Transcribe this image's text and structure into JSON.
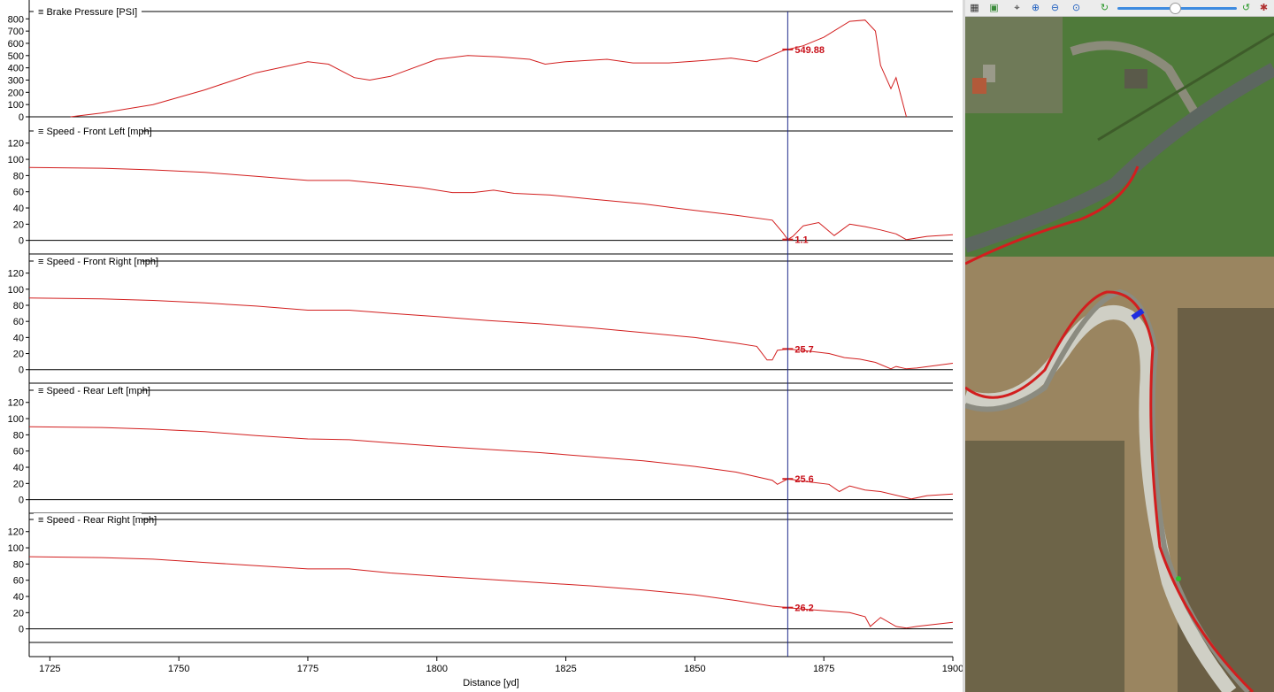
{
  "plots": {
    "x_axis": {
      "label": "Distance [yd]",
      "range": [
        1721,
        1900
      ],
      "ticks": [
        1725,
        1750,
        1775,
        1800,
        1825,
        1850,
        1875,
        1900
      ]
    },
    "cursor": {
      "x": 1868
    },
    "panels": [
      {
        "title": "Brake Pressure [PSI]",
        "yrange": [
          0,
          860
        ],
        "yticks": [
          0,
          100,
          200,
          300,
          400,
          500,
          600,
          700,
          800
        ],
        "cursor_value": "549.88",
        "cursor_y": 550
      },
      {
        "title": "Speed - Front Left [mph]",
        "yrange": [
          -8,
          135
        ],
        "yticks": [
          0,
          20,
          40,
          60,
          80,
          100,
          120
        ],
        "cursor_value": "1.1",
        "cursor_y": 1.1
      },
      {
        "title": "Speed - Front Right [mph]",
        "yrange": [
          -8,
          135
        ],
        "yticks": [
          0,
          20,
          40,
          60,
          80,
          100,
          120
        ],
        "cursor_value": "25.7",
        "cursor_y": 25.7
      },
      {
        "title": "Speed - Rear Left [mph]",
        "yrange": [
          -8,
          135
        ],
        "yticks": [
          0,
          20,
          40,
          60,
          80,
          100,
          120
        ],
        "cursor_value": "25.6",
        "cursor_y": 25.6
      },
      {
        "title": "Speed - Rear Right [mph]",
        "yrange": [
          -8,
          135
        ],
        "yticks": [
          0,
          20,
          40,
          60,
          80,
          100,
          120
        ],
        "cursor_value": "26.2",
        "cursor_y": 26.2
      }
    ]
  },
  "chart_data": [
    {
      "type": "line",
      "title": "Brake Pressure [PSI]",
      "xlabel": "Distance [yd]",
      "ylabel": "Brake Pressure [PSI]",
      "xlim": [
        1721,
        1900
      ],
      "ylim": [
        0,
        860
      ],
      "grid": false,
      "series": [
        {
          "name": "Brake Pressure [PSI]",
          "x": [
            1729,
            1735,
            1745,
            1755,
            1765,
            1775,
            1779,
            1784,
            1787,
            1791,
            1800,
            1806,
            1812,
            1818,
            1821,
            1825,
            1833,
            1838,
            1845,
            1852,
            1857,
            1862,
            1867,
            1871,
            1875,
            1880,
            1883,
            1885,
            1886,
            1888,
            1889,
            1891
          ],
          "y": [
            0,
            30,
            100,
            220,
            360,
            450,
            430,
            320,
            300,
            330,
            470,
            500,
            490,
            470,
            430,
            450,
            470,
            440,
            440,
            460,
            480,
            450,
            540,
            580,
            650,
            780,
            790,
            700,
            420,
            230,
            320,
            0
          ]
        }
      ],
      "cursor_x": 1868
    },
    {
      "type": "line",
      "title": "Speed - Front Left [mph]",
      "xlabel": "Distance [yd]",
      "ylabel": "Speed - Front Left [mph]",
      "xlim": [
        1721,
        1900
      ],
      "ylim": [
        -8,
        135
      ],
      "grid": false,
      "series": [
        {
          "name": "Speed - Front Left [mph]",
          "x": [
            1721,
            1735,
            1745,
            1755,
            1765,
            1775,
            1783,
            1791,
            1797,
            1803,
            1807,
            1811,
            1815,
            1822,
            1830,
            1840,
            1850,
            1858,
            1865,
            1867,
            1868,
            1869,
            1871,
            1874,
            1877,
            1880,
            1883,
            1886,
            1889,
            1891,
            1895,
            1900
          ],
          "y": [
            90,
            89,
            87,
            84,
            79,
            74,
            74,
            69,
            65,
            59,
            59,
            62,
            58,
            56,
            51,
            45,
            37,
            31,
            25,
            10,
            1.1,
            5,
            18,
            22,
            6,
            20,
            17,
            13,
            8,
            1,
            5,
            7
          ]
        }
      ],
      "cursor_x": 1868
    },
    {
      "type": "line",
      "title": "Speed - Front Right [mph]",
      "xlabel": "Distance [yd]",
      "ylabel": "Speed - Front Right [mph]",
      "xlim": [
        1721,
        1900
      ],
      "ylim": [
        -8,
        135
      ],
      "grid": false,
      "series": [
        {
          "name": "Speed - Front Right [mph]",
          "x": [
            1721,
            1735,
            1745,
            1755,
            1765,
            1775,
            1783,
            1791,
            1800,
            1810,
            1820,
            1830,
            1840,
            1850,
            1858,
            1862,
            1864,
            1865,
            1866,
            1868,
            1872,
            1876,
            1879,
            1882,
            1885,
            1888,
            1889,
            1891,
            1893,
            1900
          ],
          "y": [
            89,
            88,
            86,
            83,
            79,
            74,
            74,
            70,
            66,
            61,
            57,
            52,
            46,
            40,
            33,
            29,
            12,
            12,
            24,
            25.7,
            23,
            20,
            15,
            13,
            9,
            1,
            4,
            1,
            2,
            8
          ]
        }
      ],
      "cursor_x": 1868
    },
    {
      "type": "line",
      "title": "Speed - Rear Left [mph]",
      "xlabel": "Distance [yd]",
      "ylabel": "Speed - Rear Left [mph]",
      "xlim": [
        1721,
        1900
      ],
      "ylim": [
        -8,
        135
      ],
      "grid": false,
      "series": [
        {
          "name": "Speed - Rear Left [mph]",
          "x": [
            1721,
            1735,
            1745,
            1755,
            1765,
            1775,
            1783,
            1791,
            1800,
            1810,
            1820,
            1830,
            1840,
            1850,
            1858,
            1865,
            1866,
            1868,
            1872,
            1876,
            1878,
            1880,
            1883,
            1886,
            1890,
            1892,
            1895,
            1900
          ],
          "y": [
            90,
            89,
            87,
            84,
            79,
            75,
            74,
            70,
            66,
            62,
            58,
            53,
            48,
            41,
            34,
            24,
            19,
            25.6,
            22,
            19,
            10,
            17,
            12,
            10,
            4,
            1,
            5,
            7
          ]
        }
      ],
      "cursor_x": 1868
    },
    {
      "type": "line",
      "title": "Speed - Rear Right [mph]",
      "xlabel": "Distance [yd]",
      "ylabel": "Speed - Rear Right [mph]",
      "xlim": [
        1721,
        1900
      ],
      "ylim": [
        -8,
        135
      ],
      "grid": false,
      "series": [
        {
          "name": "Speed - Rear Right [mph]",
          "x": [
            1721,
            1735,
            1745,
            1755,
            1765,
            1775,
            1783,
            1791,
            1800,
            1810,
            1820,
            1830,
            1840,
            1850,
            1858,
            1865,
            1868,
            1872,
            1876,
            1880,
            1883,
            1884,
            1886,
            1889,
            1891,
            1893,
            1900
          ],
          "y": [
            89,
            88,
            86,
            82,
            78,
            74,
            74,
            69,
            65,
            61,
            57,
            53,
            48,
            42,
            35,
            28,
            26.2,
            24,
            22,
            20,
            15,
            3,
            14,
            3,
            1,
            3,
            8
          ]
        }
      ],
      "cursor_x": 1868
    }
  ],
  "map": {
    "toolbar_icons": [
      "grid-icon",
      "map-layer-icon",
      "select-pointer-icon",
      "zoom-in-icon",
      "zoom-out-icon",
      "zoom-fit-icon",
      "refresh-icon",
      "reset-icon",
      "settings-icon"
    ],
    "zoom_level": 0.62
  },
  "colors": {
    "trace": "#d21e1e",
    "cursor_line": "#1e2a8c",
    "marker_blue": "#1f2ce0",
    "zoom_track": "#3d8be0"
  }
}
